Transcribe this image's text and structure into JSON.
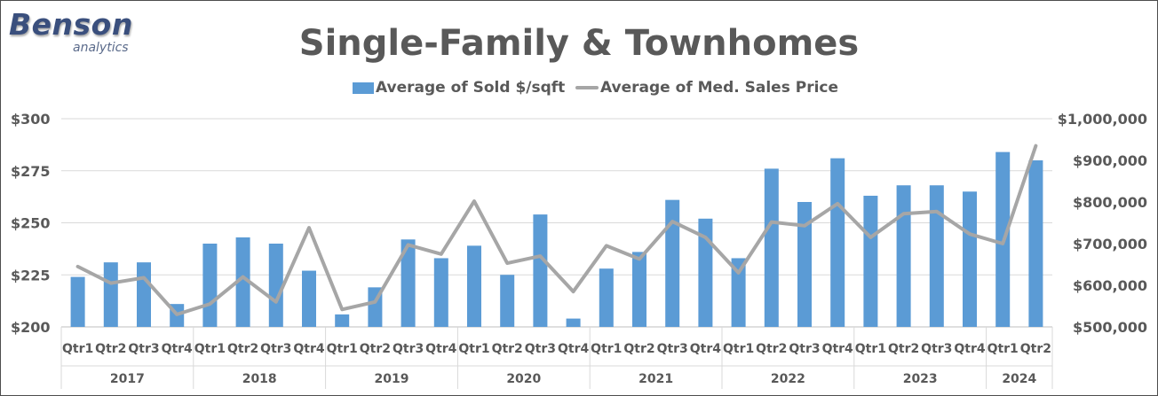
{
  "logo": {
    "brand": "Benson",
    "sub": "analytics"
  },
  "chart_data": {
    "type": "bar",
    "title": "Single-Family & Townhomes",
    "legend_position": "top-center",
    "categories": [
      "Qtr1",
      "Qtr2",
      "Qtr3",
      "Qtr4",
      "Qtr1",
      "Qtr2",
      "Qtr3",
      "Qtr4",
      "Qtr1",
      "Qtr2",
      "Qtr3",
      "Qtr4",
      "Qtr1",
      "Qtr2",
      "Qtr3",
      "Qtr4",
      "Qtr1",
      "Qtr2",
      "Qtr3",
      "Qtr4",
      "Qtr1",
      "Qtr2",
      "Qtr3",
      "Qtr4",
      "Qtr1",
      "Qtr2",
      "Qtr3",
      "Qtr4",
      "Qtr1",
      "Qtr2"
    ],
    "years": [
      {
        "label": "2017",
        "count": 4
      },
      {
        "label": "2018",
        "count": 4
      },
      {
        "label": "2019",
        "count": 4
      },
      {
        "label": "2020",
        "count": 4
      },
      {
        "label": "2021",
        "count": 4
      },
      {
        "label": "2022",
        "count": 4
      },
      {
        "label": "2023",
        "count": 4
      },
      {
        "label": "2024",
        "count": 2
      }
    ],
    "series": [
      {
        "name": "Average of Sold $/sqft",
        "type": "bar",
        "axis": "left",
        "color": "#5b9bd5",
        "values": [
          224,
          231,
          231,
          211,
          240,
          243,
          240,
          227,
          206,
          219,
          242,
          233,
          239,
          225,
          254,
          204,
          228,
          236,
          261,
          252,
          233,
          276,
          260,
          281,
          263,
          268,
          268,
          265,
          284,
          280
        ]
      },
      {
        "name": "Average of Med. Sales Price",
        "type": "line",
        "axis": "right",
        "color": "#a6a6a6",
        "values": [
          645000,
          605000,
          618000,
          530000,
          555000,
          620000,
          560000,
          738000,
          542000,
          560000,
          697000,
          675000,
          802000,
          653000,
          670000,
          585000,
          695000,
          663000,
          753000,
          715000,
          630000,
          752000,
          743000,
          796000,
          715000,
          772000,
          777000,
          723000,
          700000,
          935000
        ]
      }
    ],
    "y_left": {
      "min": 200,
      "max": 300,
      "ticks": [
        200,
        225,
        250,
        275,
        300
      ],
      "tick_labels": [
        "$200",
        "$225",
        "$250",
        "$275",
        "$300"
      ]
    },
    "y_right": {
      "min": 500000,
      "max": 1000000,
      "ticks": [
        500000,
        600000,
        700000,
        800000,
        900000,
        1000000
      ],
      "tick_labels": [
        "$500,000",
        "$600,000",
        "$700,000",
        "$800,000",
        "$900,000",
        "$1,000,000"
      ]
    },
    "grid": true
  }
}
